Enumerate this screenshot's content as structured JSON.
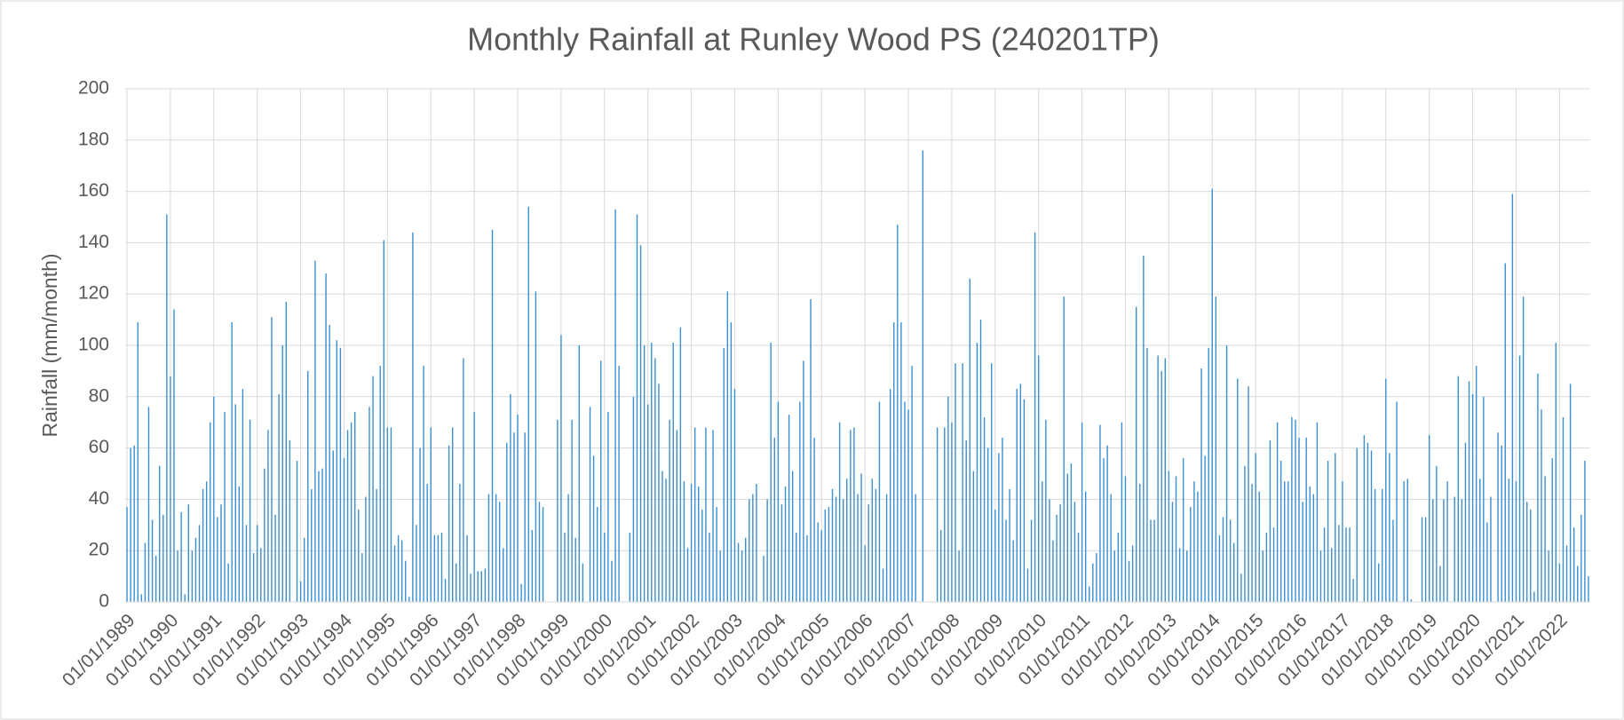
{
  "chart_data": {
    "type": "bar",
    "title": "Monthly Rainfall at Runley Wood PS (240201TP)",
    "y_label": "Rainfall (mm/month)",
    "color": "#3a8fd0",
    "grid": true,
    "ylim": [
      0,
      200
    ],
    "yticks": [
      0,
      20,
      40,
      60,
      80,
      100,
      120,
      140,
      160,
      180,
      200
    ],
    "categories": [
      "01/01/1989",
      null,
      null,
      null,
      null,
      null,
      null,
      null,
      null,
      null,
      null,
      null,
      "01/01/1990",
      null,
      null,
      null,
      null,
      null,
      null,
      null,
      null,
      null,
      null,
      null,
      "01/01/1991",
      null,
      null,
      null,
      null,
      null,
      null,
      null,
      null,
      null,
      null,
      null,
      "01/01/1992",
      null,
      null,
      null,
      null,
      null,
      null,
      null,
      null,
      null,
      null,
      null,
      "01/01/1993",
      null,
      null,
      null,
      null,
      null,
      null,
      null,
      null,
      null,
      null,
      null,
      "01/01/1994",
      null,
      null,
      null,
      null,
      null,
      null,
      null,
      null,
      null,
      null,
      null,
      "01/01/1995",
      null,
      null,
      null,
      null,
      null,
      null,
      null,
      null,
      null,
      null,
      null,
      "01/01/1996",
      null,
      null,
      null,
      null,
      null,
      null,
      null,
      null,
      null,
      null,
      null,
      "01/01/1997",
      null,
      null,
      null,
      null,
      null,
      null,
      null,
      null,
      null,
      null,
      null,
      "01/01/1998",
      null,
      null,
      null,
      null,
      null,
      null,
      null,
      null,
      null,
      null,
      null,
      "01/01/1999",
      null,
      null,
      null,
      null,
      null,
      null,
      null,
      null,
      null,
      null,
      null,
      "01/01/2000",
      null,
      null,
      null,
      null,
      null,
      null,
      null,
      null,
      null,
      null,
      null,
      "01/01/2001",
      null,
      null,
      null,
      null,
      null,
      null,
      null,
      null,
      null,
      null,
      null,
      "01/01/2002",
      null,
      null,
      null,
      null,
      null,
      null,
      null,
      null,
      null,
      null,
      null,
      "01/01/2003",
      null,
      null,
      null,
      null,
      null,
      null,
      null,
      null,
      null,
      null,
      null,
      "01/01/2004",
      null,
      null,
      null,
      null,
      null,
      null,
      null,
      null,
      null,
      null,
      null,
      "01/01/2005",
      null,
      null,
      null,
      null,
      null,
      null,
      null,
      null,
      null,
      null,
      null,
      "01/01/2006",
      null,
      null,
      null,
      null,
      null,
      null,
      null,
      null,
      null,
      null,
      null,
      "01/01/2007",
      null,
      null,
      null,
      null,
      null,
      null,
      null,
      null,
      null,
      null,
      null,
      "01/01/2008",
      null,
      null,
      null,
      null,
      null,
      null,
      null,
      null,
      null,
      null,
      null,
      "01/01/2009",
      null,
      null,
      null,
      null,
      null,
      null,
      null,
      null,
      null,
      null,
      null,
      "01/01/2010",
      null,
      null,
      null,
      null,
      null,
      null,
      null,
      null,
      null,
      null,
      null,
      "01/01/2011",
      null,
      null,
      null,
      null,
      null,
      null,
      null,
      null,
      null,
      null,
      null,
      "01/01/2012",
      null,
      null,
      null,
      null,
      null,
      null,
      null,
      null,
      null,
      null,
      null,
      "01/01/2013",
      null,
      null,
      null,
      null,
      null,
      null,
      null,
      null,
      null,
      null,
      null,
      "01/01/2014",
      null,
      null,
      null,
      null,
      null,
      null,
      null,
      null,
      null,
      null,
      null,
      "01/01/2015",
      null,
      null,
      null,
      null,
      null,
      null,
      null,
      null,
      null,
      null,
      null,
      "01/01/2016",
      null,
      null,
      null,
      null,
      null,
      null,
      null,
      null,
      null,
      null,
      null,
      "01/01/2017",
      null,
      null,
      null,
      null,
      null,
      null,
      null,
      null,
      null,
      null,
      null,
      "01/01/2018",
      null,
      null,
      null,
      null,
      null,
      null,
      null,
      null,
      null,
      null,
      null,
      "01/01/2019",
      null,
      null,
      null,
      null,
      null,
      null,
      null,
      null,
      null,
      null,
      null,
      "01/01/2020",
      null,
      null,
      null,
      null,
      null,
      null,
      null,
      null,
      null,
      null,
      null,
      "01/01/2021",
      null,
      null,
      null,
      null,
      null,
      null,
      null,
      null,
      null,
      null,
      null,
      "01/01/2022",
      null,
      null,
      null,
      null,
      null,
      null,
      null,
      null
    ],
    "values": [
      37,
      60,
      61,
      109,
      3,
      23,
      76,
      32,
      18,
      53,
      34,
      151,
      88,
      114,
      20,
      35,
      3,
      38,
      20,
      25,
      30,
      44,
      47,
      70,
      80,
      33,
      38,
      74,
      15,
      109,
      77,
      45,
      83,
      30,
      71,
      19,
      30,
      21,
      52,
      67,
      111,
      34,
      81,
      100,
      117,
      63,
      0,
      55,
      8,
      25,
      90,
      44,
      133,
      51,
      52,
      128,
      108,
      59,
      102,
      99,
      56,
      67,
      70,
      74,
      36,
      19,
      41,
      76,
      88,
      44,
      92,
      141,
      68,
      68,
      22,
      26,
      24,
      16,
      2,
      144,
      30,
      60,
      92,
      46,
      68,
      26,
      26,
      27,
      9,
      61,
      68,
      15,
      46,
      95,
      26,
      11,
      74,
      12,
      12,
      13,
      42,
      145,
      42,
      39,
      21,
      62,
      81,
      66,
      73,
      7,
      66,
      154,
      28,
      121,
      39,
      37,
      0,
      0,
      0,
      71,
      104,
      27,
      42,
      71,
      25,
      100,
      15,
      0,
      76,
      57,
      37,
      94,
      27,
      74,
      16,
      153,
      92,
      0,
      0,
      27,
      80,
      151,
      139,
      100,
      77,
      101,
      95,
      85,
      51,
      48,
      71,
      101,
      67,
      107,
      47,
      21,
      46,
      68,
      45,
      36,
      68,
      27,
      67,
      37,
      20,
      99,
      121,
      109,
      83,
      23,
      20,
      25,
      40,
      42,
      46,
      0,
      18,
      40,
      101,
      64,
      78,
      38,
      45,
      73,
      51,
      27,
      78,
      94,
      26,
      118,
      64,
      31,
      28,
      36,
      37,
      44,
      41,
      70,
      40,
      48,
      67,
      68,
      42,
      50,
      22,
      38,
      48,
      44,
      78,
      13,
      42,
      83,
      109,
      147,
      109,
      78,
      75,
      92,
      42,
      0,
      176,
      0,
      0,
      0,
      68,
      28,
      68,
      80,
      70,
      93,
      20,
      93,
      63,
      126,
      51,
      101,
      110,
      72,
      60,
      93,
      36,
      58,
      64,
      32,
      44,
      24,
      83,
      85,
      79,
      13,
      32,
      144,
      96,
      47,
      71,
      40,
      24,
      34,
      38,
      119,
      50,
      54,
      39,
      27,
      70,
      43,
      6,
      15,
      19,
      69,
      56,
      61,
      42,
      20,
      27,
      70,
      49,
      16,
      22,
      115,
      46,
      135,
      99,
      32,
      32,
      96,
      90,
      95,
      51,
      39,
      49,
      21,
      56,
      20,
      37,
      47,
      43,
      91,
      57,
      99,
      161,
      119,
      26,
      33,
      100,
      32,
      23,
      87,
      11,
      53,
      84,
      46,
      58,
      43,
      20,
      27,
      63,
      29,
      70,
      55,
      47,
      47,
      72,
      71,
      64,
      39,
      64,
      45,
      42,
      70,
      20,
      29,
      55,
      21,
      58,
      30,
      47,
      29,
      29,
      9,
      60,
      0,
      65,
      62,
      59,
      44,
      15,
      44,
      87,
      58,
      32,
      78,
      0,
      47,
      48,
      1,
      0,
      0,
      33,
      33,
      65,
      40,
      53,
      14,
      40,
      47,
      0,
      41,
      88,
      40,
      62,
      86,
      81,
      92,
      48,
      80,
      31,
      41,
      0,
      66,
      61,
      132,
      48,
      159,
      47,
      96,
      119,
      39,
      36,
      4,
      89,
      75,
      49,
      20,
      56,
      101,
      15,
      72,
      22,
      85,
      29,
      14,
      34,
      55,
      10
    ]
  }
}
